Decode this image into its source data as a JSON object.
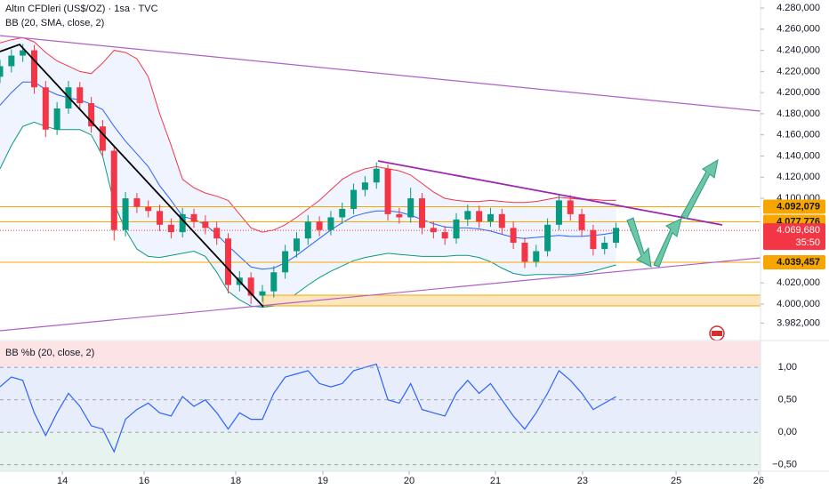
{
  "chart_data": [
    {
      "type": "candlestick",
      "title": "Altın CFDleri (US$/OZ) · 1sa · TVC",
      "indicator": "BB (20, SMA, close, 2)",
      "x": [
        0,
        3,
        6,
        9,
        12,
        15,
        18,
        21,
        24,
        27,
        30,
        33,
        36,
        39,
        42,
        45,
        48,
        51,
        54,
        57,
        60,
        63,
        66,
        69,
        72,
        75,
        78,
        81,
        84,
        87,
        90,
        93,
        96,
        99,
        102,
        105,
        108,
        111,
        114,
        117,
        120,
        123,
        126,
        129,
        132,
        135,
        138,
        141,
        144,
        147,
        150,
        153,
        156,
        159,
        162
      ],
      "open": [
        4215,
        4225,
        4235,
        4240,
        4205,
        4165,
        4185,
        4205,
        4190,
        4168,
        4145,
        4070,
        4100,
        4092,
        4088,
        4075,
        4068,
        4085,
        4078,
        4072,
        4062,
        4018,
        4025,
        4008,
        4012,
        4030,
        4050,
        4062,
        4078,
        4070,
        4082,
        4090,
        4108,
        4115,
        4128,
        4085,
        4082,
        4100,
        4072,
        4068,
        4062,
        4080,
        4088,
        4078,
        4085,
        4072,
        4058,
        4040,
        4050,
        4075,
        4098,
        4085,
        4070,
        4052,
        4058
      ],
      "high": [
        4231,
        4241,
        4246,
        4245,
        4211,
        4191,
        4211,
        4210,
        4196,
        4174,
        4150,
        4106,
        4105,
        4098,
        4094,
        4081,
        4091,
        4090,
        4084,
        4078,
        4067,
        4031,
        4030,
        4018,
        4036,
        4056,
        4068,
        4084,
        4083,
        4088,
        4096,
        4114,
        4121,
        4134,
        4132,
        4091,
        4110,
        4105,
        4078,
        4074,
        4086,
        4094,
        4093,
        4091,
        4090,
        4078,
        4063,
        4056,
        4081,
        4104,
        4103,
        4090,
        4075,
        4064,
        4077
      ],
      "low": [
        4209,
        4219,
        4229,
        4199,
        4158,
        4160,
        4180,
        4185,
        4162,
        4139,
        4060,
        4064,
        4086,
        4082,
        4069,
        4062,
        4063,
        4072,
        4066,
        4056,
        4010,
        4012,
        4000,
        4002,
        4006,
        4024,
        4044,
        4056,
        4064,
        4065,
        4076,
        4085,
        4102,
        4109,
        4079,
        4076,
        4077,
        4066,
        4062,
        4056,
        4057,
        4074,
        4072,
        4073,
        4066,
        4052,
        4034,
        4035,
        4045,
        4070,
        4079,
        4064,
        4046,
        4047,
        4053
      ],
      "close": [
        4225,
        4235,
        4240,
        4205,
        4165,
        4185,
        4205,
        4190,
        4168,
        4145,
        4070,
        4100,
        4092,
        4088,
        4075,
        4068,
        4085,
        4078,
        4072,
        4062,
        4018,
        4025,
        4008,
        4012,
        4030,
        4050,
        4062,
        4078,
        4070,
        4082,
        4090,
        4108,
        4115,
        4128,
        4085,
        4082,
        4100,
        4072,
        4068,
        4062,
        4080,
        4088,
        4078,
        4085,
        4072,
        4058,
        4040,
        4050,
        4075,
        4098,
        4085,
        4070,
        4052,
        4058,
        4072
      ],
      "up_color": "#089981",
      "down_color": "#f23645",
      "bb_upper": {
        "color": "#f23645",
        "values": [
          4247,
          4250,
          4252,
          4248,
          4238,
          4230,
          4225,
          4220,
          4218,
          4228,
          4240,
          4238,
          4232,
          4215,
          4180,
          4150,
          4118,
          4110,
          4105,
          4102,
          4098,
          4085,
          4072,
          4068,
          4070,
          4075,
          4082,
          4090,
          4098,
          4108,
          4118,
          4124,
          4128,
          4130,
          4128,
          4126,
          4122,
          4114,
          4106,
          4100,
          4098,
          4097,
          4097,
          4098,
          4097,
          4096,
          4096,
          4097,
          4099,
          4101,
          4100,
          4099,
          4099,
          4098,
          4098
        ]
      },
      "bb_middle": {
        "color": "#2962ff",
        "values": [
          4188,
          4200,
          4210,
          4210,
          4203,
          4198,
          4195,
          4193,
          4189,
          4184,
          4168,
          4154,
          4142,
          4130,
          4112,
          4098,
          4083,
          4080,
          4075,
          4066,
          4055,
          4045,
          4035,
          4033,
          4034,
          4039,
          4046,
          4054,
          4062,
          4070,
          4077,
          4083,
          4086,
          4088,
          4088,
          4087,
          4084,
          4080,
          4076,
          4073,
          4072,
          4072,
          4071,
          4069,
          4066,
          4063,
          4062,
          4063,
          4064,
          4065,
          4064,
          4064,
          4065,
          4066,
          4068
        ]
      },
      "bb_lower": {
        "color": "#089981",
        "values": [
          4128,
          4150,
          4168,
          4172,
          4168,
          4165,
          4165,
          4165,
          4160,
          4140,
          4095,
          4070,
          4052,
          4045,
          4044,
          4046,
          4048,
          4050,
          4045,
          4030,
          4012,
          4004,
          3998,
          3997,
          3998,
          4002,
          4010,
          4018,
          4025,
          4031,
          4036,
          4041,
          4044,
          4046,
          4048,
          4047,
          4046,
          4045,
          4045,
          4045,
          4046,
          4046,
          4044,
          4040,
          4034,
          4029,
          4027,
          4028,
          4028,
          4028,
          4028,
          4029,
          4031,
          4034,
          4037
        ]
      },
      "xlim": [
        0,
        200
      ],
      "xticks": [
        {
          "value": 16.4,
          "label": "14"
        },
        {
          "value": 37.9,
          "label": "16"
        },
        {
          "value": 62,
          "label": "18"
        },
        {
          "value": 84.9,
          "label": "19"
        },
        {
          "value": 107.6,
          "label": "20"
        },
        {
          "value": 130.3,
          "label": "21"
        },
        {
          "value": 153.2,
          "label": "23"
        },
        {
          "value": 177.8,
          "label": "25"
        },
        {
          "value": 199.5,
          "label": "26"
        }
      ],
      "ylim": [
        3968,
        4287.6
      ],
      "yticks": [
        {
          "value": 4280,
          "label": "4.280,000"
        },
        {
          "value": 4260,
          "label": "4.260,000"
        },
        {
          "value": 4240,
          "label": "4.240,000"
        },
        {
          "value": 4220,
          "label": "4.220,000"
        },
        {
          "value": 4200,
          "label": "4.200,000"
        },
        {
          "value": 4180,
          "label": "4.180,000"
        },
        {
          "value": 4160,
          "label": "4.160,000"
        },
        {
          "value": 4140,
          "label": "4.140,000"
        },
        {
          "value": 4120,
          "label": "4.120,000"
        },
        {
          "value": 4100,
          "label": "4.100,000"
        },
        {
          "value": 4020,
          "label": "4.020,000"
        },
        {
          "value": 4000,
          "label": "4.000,000"
        },
        {
          "value": 3982,
          "label": "3.982,000"
        }
      ],
      "price_levels": [
        {
          "value": 4092.079,
          "label": "4.092,079"
        },
        {
          "value": 4077.776,
          "label": "4.077,776"
        },
        {
          "value": 4039.457,
          "label": "4.039,457"
        }
      ],
      "level_color": "#f7a600",
      "last_price": {
        "value": 4069.68,
        "label": "4.069,680"
      },
      "countdown": "35:50"
    },
    {
      "type": "line",
      "title": "BB %b (20, close, 2)",
      "color": "#2962ff",
      "x": [
        0,
        3,
        6,
        9,
        12,
        15,
        18,
        21,
        24,
        27,
        30,
        33,
        36,
        39,
        42,
        45,
        48,
        51,
        54,
        57,
        60,
        63,
        66,
        69,
        72,
        75,
        78,
        81,
        84,
        87,
        90,
        93,
        96,
        99,
        102,
        105,
        108,
        111,
        114,
        117,
        120,
        123,
        126,
        129,
        132,
        135,
        138,
        141,
        144,
        147,
        150,
        153,
        156,
        159,
        162
      ],
      "values": [
        0.7,
        0.85,
        0.8,
        0.3,
        -0.05,
        0.3,
        0.6,
        0.4,
        0.1,
        0.05,
        -0.3,
        0.2,
        0.35,
        0.45,
        0.3,
        0.25,
        0.55,
        0.4,
        0.5,
        0.3,
        0.05,
        0.3,
        0.2,
        0.2,
        0.6,
        0.85,
        0.9,
        0.95,
        0.75,
        0.7,
        0.75,
        0.95,
        1.0,
        1.05,
        0.5,
        0.45,
        0.75,
        0.35,
        0.3,
        0.25,
        0.6,
        0.8,
        0.6,
        0.75,
        0.5,
        0.25,
        0.05,
        0.3,
        0.6,
        0.95,
        0.8,
        0.6,
        0.35,
        0.45,
        0.55
      ],
      "xlim": [
        0,
        200
      ],
      "ylim": [
        -0.6,
        1.4
      ],
      "yticks": [
        {
          "value": 1,
          "label": "1,00"
        },
        {
          "value": 0.5,
          "label": "0,50"
        },
        {
          "value": 0,
          "label": "0,00"
        },
        {
          "value": -0.5,
          "label": "−0,50"
        }
      ],
      "grid": true
    }
  ]
}
